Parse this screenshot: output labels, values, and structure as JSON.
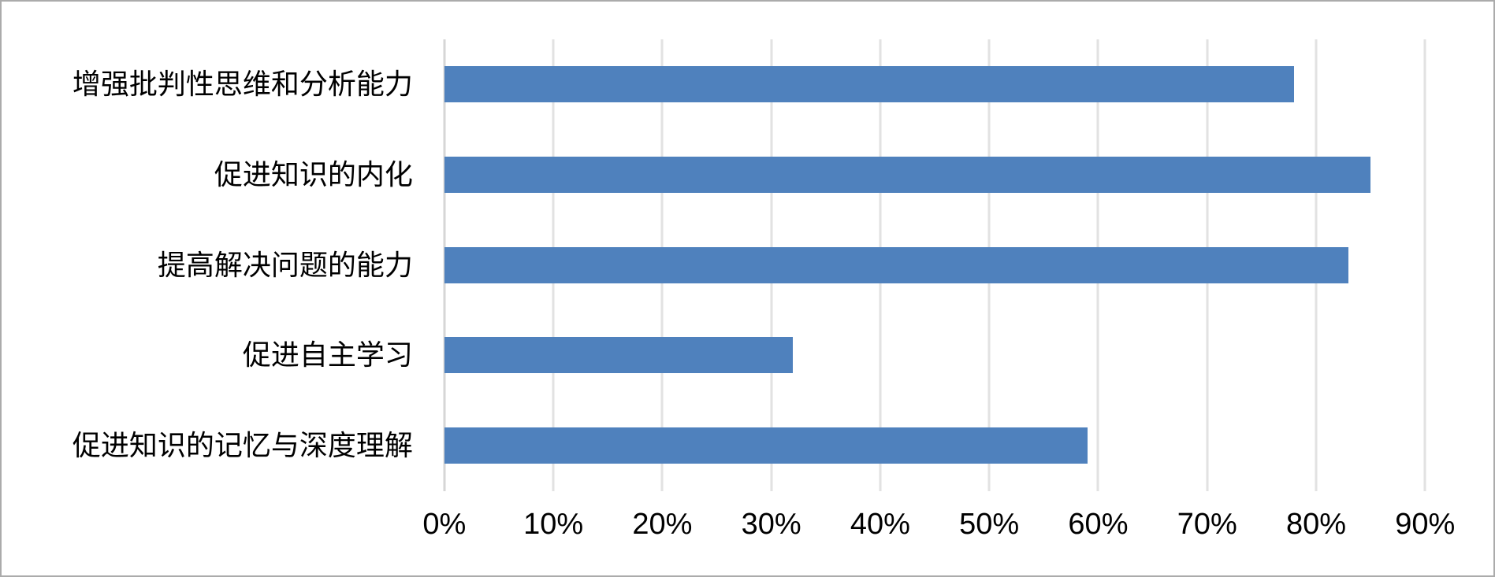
{
  "colors": {
    "bar": "#4F81BD",
    "gridline": "#E2E2E2",
    "axis_line": "#D6D6D6",
    "frame_border": "#ABABAB",
    "text": "#000000",
    "background": "#FFFFFF"
  },
  "chart_data": {
    "type": "bar",
    "orientation": "horizontal",
    "title": "",
    "xlabel": "",
    "ylabel": "",
    "grid": "vertical-major-gridlines",
    "legend": "none",
    "categories": [
      "增强批判性思维和分析能力",
      "促进知识的内化",
      "提高解决问题的能力",
      "促进自主学习",
      "促进知识的记忆与深度理解"
    ],
    "values": [
      78,
      85,
      83,
      32,
      59
    ],
    "unit": "%",
    "x_axis": {
      "min": 0,
      "max": 90,
      "tick_step": 10,
      "tick_labels": [
        "0%",
        "10%",
        "20%",
        "30%",
        "40%",
        "50%",
        "60%",
        "70%",
        "80%",
        "90%"
      ]
    }
  }
}
